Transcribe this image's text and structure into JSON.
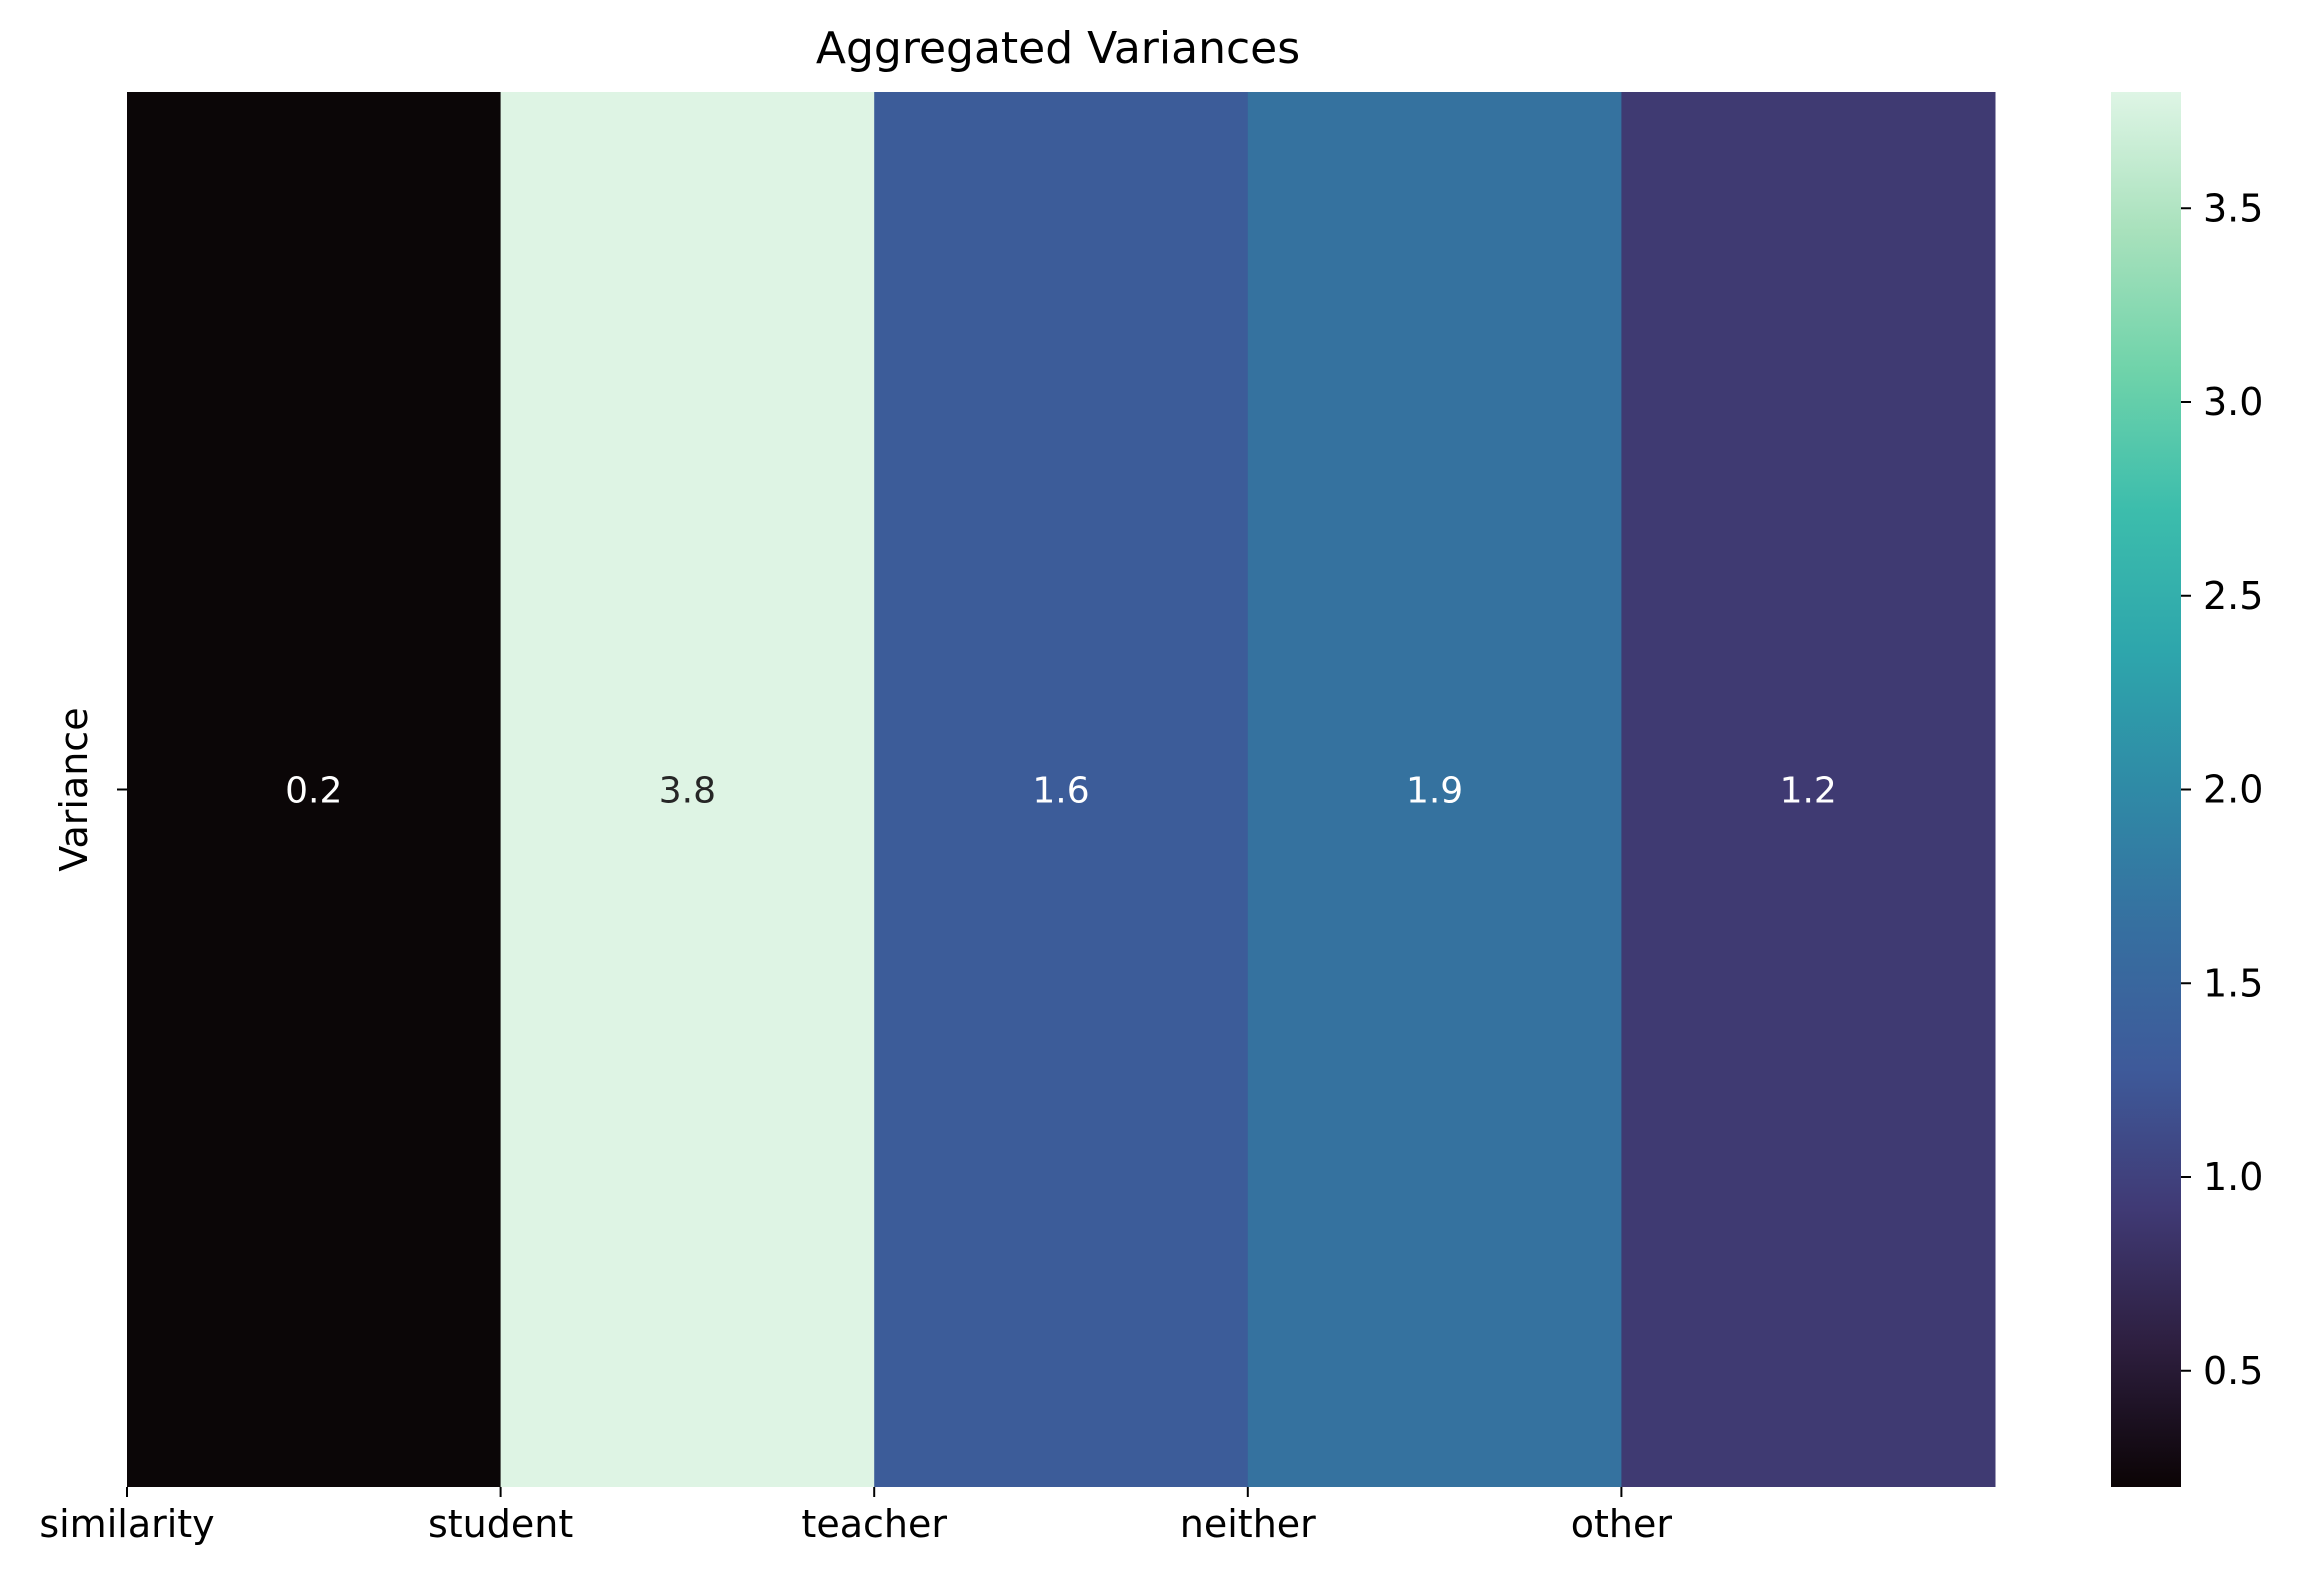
{
  "chart_data": {
    "type": "heatmap",
    "title": "Aggregated Variances",
    "xlabel": "",
    "ylabel": "",
    "rows": [
      "Variance"
    ],
    "columns": [
      "similarity",
      "student",
      "teacher",
      "neither",
      "other"
    ],
    "values": [
      [
        0.2,
        3.8,
        1.6,
        1.9,
        1.2
      ]
    ],
    "cell_labels": [
      [
        "0.2",
        "3.8",
        "1.6",
        "1.9",
        "1.2"
      ]
    ],
    "cell_colors": [
      "#0b0607",
      "#def4e4",
      "#3c5c99",
      "#35729f",
      "#3f3a72"
    ],
    "cell_label_colors": [
      "#ffffff",
      "#262626",
      "#ffffff",
      "#ffffff",
      "#ffffff"
    ],
    "colorbar": {
      "colormap": "mako",
      "range": [
        0.2,
        3.8
      ],
      "ticks": [
        0.5,
        1.0,
        1.5,
        2.0,
        2.5,
        3.0,
        3.5
      ],
      "tick_labels": [
        "0.5",
        "1.0",
        "1.5",
        "2.0",
        "2.5",
        "3.0",
        "3.5"
      ],
      "stops": [
        "#0b0405",
        "#2d1e3e",
        "#403a75",
        "#3e5a9a",
        "#366fa0",
        "#2f8aa6",
        "#2ea6ac",
        "#3cbdac",
        "#6fd3aa",
        "#a8e1bc",
        "#def5e5"
      ]
    },
    "grid": false
  }
}
